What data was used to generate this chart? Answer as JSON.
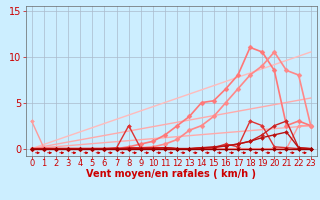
{
  "background_color": "#cceeff",
  "grid_color": "#aabbcc",
  "xlabel": "Vent moyen/en rafales ( km/h )",
  "xlabel_color": "#cc0000",
  "xlabel_fontsize": 7,
  "tick_color": "#cc0000",
  "tick_fontsize": 6,
  "ytick_fontsize": 7,
  "xlim": [
    -0.5,
    23.5
  ],
  "ylim": [
    -0.8,
    15.5
  ],
  "yticks": [
    0,
    5,
    10,
    15
  ],
  "xticks": [
    0,
    1,
    2,
    3,
    4,
    5,
    6,
    7,
    8,
    9,
    10,
    11,
    12,
    13,
    14,
    15,
    16,
    17,
    18,
    19,
    20,
    21,
    22,
    23
  ],
  "series": [
    {
      "x": [
        0,
        23
      ],
      "y": [
        0.0,
        2.5
      ],
      "color": "#ffaaaa",
      "lw": 1.0,
      "marker": null,
      "ms": 0
    },
    {
      "x": [
        0,
        23
      ],
      "y": [
        0.0,
        5.5
      ],
      "color": "#ffaaaa",
      "lw": 1.0,
      "marker": null,
      "ms": 0
    },
    {
      "x": [
        0,
        23
      ],
      "y": [
        0.0,
        10.5
      ],
      "color": "#ffbbbb",
      "lw": 1.0,
      "marker": null,
      "ms": 0
    },
    {
      "x": [
        0,
        1,
        2,
        3,
        4,
        5,
        6,
        7,
        8,
        9,
        10,
        11,
        12,
        13,
        14,
        15,
        16,
        17,
        18,
        19,
        20,
        21,
        22,
        23
      ],
      "y": [
        3.0,
        0.1,
        0.0,
        0.0,
        0.0,
        0.0,
        0.0,
        0.0,
        0.0,
        0.0,
        0.0,
        0.0,
        0.0,
        0.0,
        0.0,
        0.0,
        0.0,
        0.0,
        0.0,
        0.0,
        0.0,
        0.0,
        2.5,
        2.5
      ],
      "color": "#ff9999",
      "lw": 1.0,
      "marker": "D",
      "ms": 2.0
    },
    {
      "x": [
        0,
        1,
        2,
        3,
        4,
        5,
        6,
        7,
        8,
        9,
        10,
        11,
        12,
        13,
        14,
        15,
        16,
        17,
        18,
        19,
        20,
        21,
        22,
        23
      ],
      "y": [
        0.0,
        0.0,
        0.0,
        0.0,
        0.0,
        0.0,
        0.0,
        0.0,
        0.2,
        0.5,
        0.8,
        1.5,
        2.5,
        3.5,
        5.0,
        5.2,
        6.5,
        8.0,
        11.0,
        10.5,
        8.5,
        2.5,
        3.0,
        2.5
      ],
      "color": "#ff7777",
      "lw": 1.2,
      "marker": "D",
      "ms": 2.5
    },
    {
      "x": [
        0,
        1,
        2,
        3,
        4,
        5,
        6,
        7,
        8,
        9,
        10,
        11,
        12,
        13,
        14,
        15,
        16,
        17,
        18,
        19,
        20,
        21,
        22,
        23
      ],
      "y": [
        0.0,
        0.0,
        0.0,
        0.0,
        0.0,
        0.0,
        0.0,
        0.0,
        0.0,
        0.1,
        0.2,
        0.5,
        1.0,
        2.0,
        2.5,
        3.5,
        5.0,
        6.5,
        8.0,
        9.0,
        10.5,
        8.5,
        8.0,
        2.5
      ],
      "color": "#ff8888",
      "lw": 1.2,
      "marker": "D",
      "ms": 2.5
    },
    {
      "x": [
        0,
        1,
        2,
        3,
        4,
        5,
        6,
        7,
        8,
        9,
        10,
        11,
        12,
        13,
        14,
        15,
        16,
        17,
        18,
        19,
        20,
        21,
        22,
        23
      ],
      "y": [
        0.0,
        0.0,
        0.0,
        0.0,
        0.0,
        0.0,
        0.0,
        0.1,
        2.5,
        0.0,
        0.0,
        0.1,
        0.0,
        0.0,
        0.0,
        0.1,
        0.5,
        0.2,
        3.0,
        2.5,
        0.2,
        0.1,
        0.0,
        0.0
      ],
      "color": "#dd3333",
      "lw": 1.0,
      "marker": "D",
      "ms": 2.0
    },
    {
      "x": [
        0,
        1,
        2,
        3,
        4,
        5,
        6,
        7,
        8,
        9,
        10,
        11,
        12,
        13,
        14,
        15,
        16,
        17,
        18,
        19,
        20,
        21,
        22,
        23
      ],
      "y": [
        0.0,
        0.0,
        0.0,
        0.0,
        0.0,
        0.0,
        0.0,
        0.0,
        0.1,
        0.1,
        0.1,
        0.1,
        0.0,
        0.0,
        0.1,
        0.1,
        0.3,
        0.5,
        0.8,
        1.5,
        2.5,
        3.0,
        0.1,
        0.0
      ],
      "color": "#cc2222",
      "lw": 1.0,
      "marker": "D",
      "ms": 2.0
    },
    {
      "x": [
        0,
        1,
        2,
        3,
        4,
        5,
        6,
        7,
        8,
        9,
        10,
        11,
        12,
        13,
        14,
        15,
        16,
        17,
        18,
        19,
        20,
        21,
        22,
        23
      ],
      "y": [
        0.0,
        0.0,
        0.0,
        0.0,
        0.0,
        0.0,
        0.0,
        0.0,
        0.0,
        0.0,
        0.0,
        0.1,
        0.0,
        0.0,
        0.1,
        0.2,
        0.3,
        0.5,
        0.8,
        1.2,
        1.5,
        1.8,
        0.1,
        0.0
      ],
      "color": "#bb1111",
      "lw": 1.0,
      "marker": "D",
      "ms": 2.0
    },
    {
      "x": [
        0,
        1,
        2,
        3,
        4,
        5,
        6,
        7,
        8,
        9,
        10,
        11,
        12,
        13,
        14,
        15,
        16,
        17,
        18,
        19,
        20,
        21,
        22,
        23
      ],
      "y": [
        0.0,
        0.0,
        0.0,
        0.0,
        0.0,
        0.0,
        0.0,
        0.0,
        0.0,
        0.0,
        0.0,
        0.0,
        0.0,
        0.0,
        0.0,
        0.0,
        0.0,
        0.0,
        0.0,
        0.0,
        0.0,
        0.0,
        0.0,
        0.0
      ],
      "color": "#990000",
      "lw": 1.0,
      "marker": "D",
      "ms": 2.0
    }
  ],
  "arrow_color": "#cc0000"
}
